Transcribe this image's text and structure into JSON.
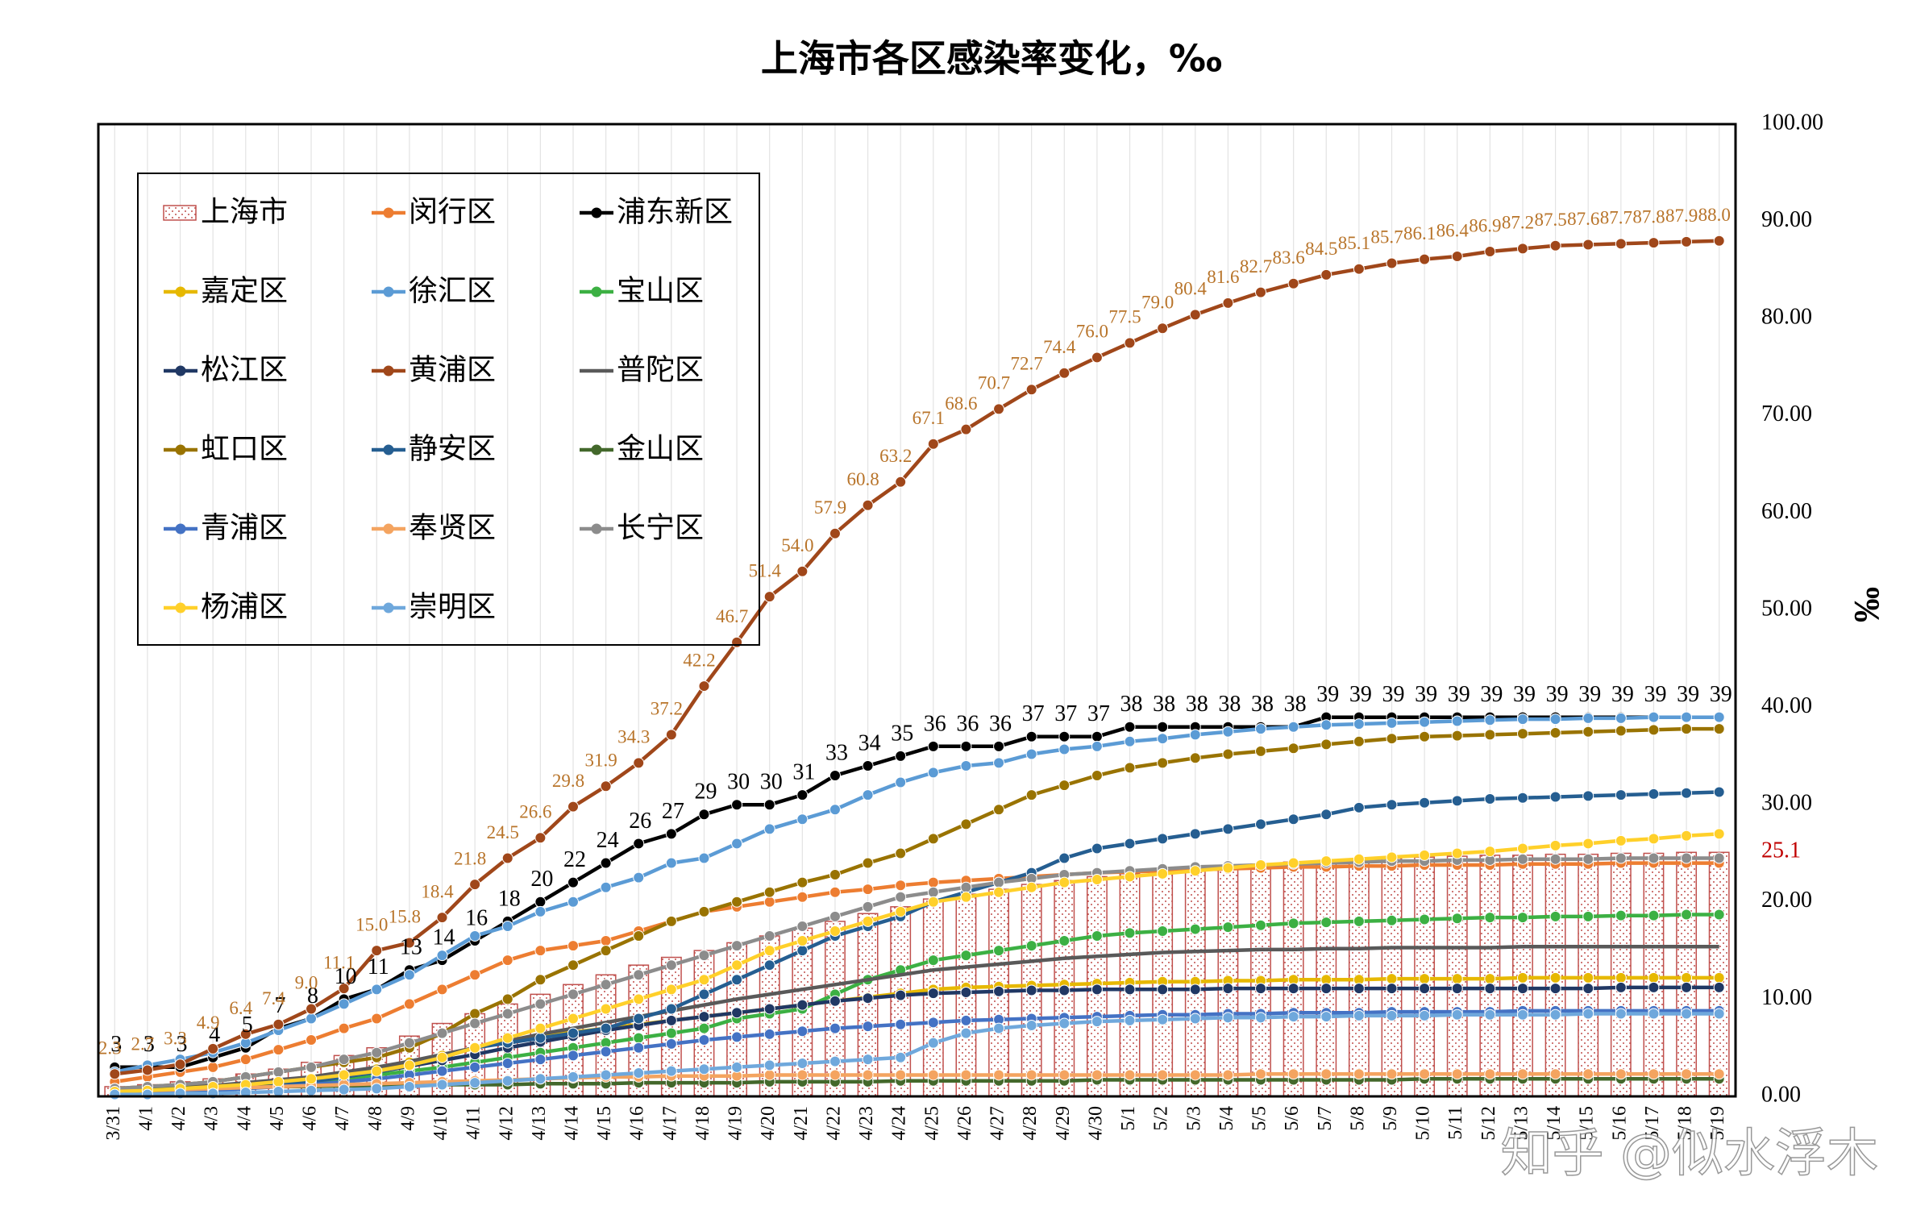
{
  "chart_data": {
    "type": "line",
    "title": "上海市各区感染率变化，‰",
    "y_axis_label": "‰",
    "watermark": "知乎 @似水浮木",
    "ylim": [
      0,
      100
    ],
    "yticks": [
      {
        "value": 0,
        "label": "0.00"
      },
      {
        "value": 10,
        "label": "10.00"
      },
      {
        "value": 20,
        "label": "20.00"
      },
      {
        "value": 30,
        "label": "30.00"
      },
      {
        "value": 40,
        "label": "40.00"
      },
      {
        "value": 50,
        "label": "50.00"
      },
      {
        "value": 60,
        "label": "60.00"
      },
      {
        "value": 70,
        "label": "70.00"
      },
      {
        "value": 80,
        "label": "80.00"
      },
      {
        "value": 90,
        "label": "90.00"
      },
      {
        "value": 100,
        "label": "100.00"
      }
    ],
    "grid": true,
    "legend": "top-left",
    "categories": [
      "3/31",
      "4/1",
      "4/2",
      "4/3",
      "4/4",
      "4/5",
      "4/6",
      "4/7",
      "4/8",
      "4/9",
      "4/10",
      "4/11",
      "4/12",
      "4/13",
      "4/14",
      "4/15",
      "4/16",
      "4/17",
      "4/18",
      "4/19",
      "4/20",
      "4/21",
      "4/22",
      "4/23",
      "4/24",
      "4/25",
      "4/26",
      "4/27",
      "4/28",
      "4/29",
      "4/30",
      "5/1",
      "5/2",
      "5/3",
      "5/4",
      "5/5",
      "5/6",
      "5/7",
      "5/8",
      "5/9",
      "5/10",
      "5/11",
      "5/12",
      "5/13",
      "5/14",
      "5/15",
      "5/16",
      "5/17",
      "5/18",
      "5/19"
    ],
    "series": [
      {
        "name": "上海市",
        "type": "bar",
        "color": "#c0504d",
        "label_last": true,
        "values": [
          1,
          1.2,
          1.5,
          1.8,
          2.3,
          2.8,
          3.5,
          4.2,
          5,
          6.2,
          7.5,
          8.5,
          9.5,
          10.5,
          11.5,
          12.5,
          13.5,
          14.3,
          15,
          15.8,
          16.5,
          17.3,
          18,
          18.8,
          19.5,
          20.3,
          20.8,
          21.3,
          21.8,
          22.2,
          22.6,
          22.9,
          23.2,
          23.5,
          23.7,
          23.9,
          24.1,
          24.2,
          24.4,
          24.5,
          24.6,
          24.7,
          24.8,
          24.8,
          24.9,
          24.9,
          25,
          25,
          25.1,
          25.1
        ]
      },
      {
        "name": "闵行区",
        "color": "#ed7d31",
        "marker": true,
        "values": [
          1.5,
          2,
          2.5,
          3,
          3.8,
          4.8,
          5.8,
          7,
          8,
          9.5,
          11,
          12.5,
          14,
          15,
          15.5,
          16,
          17,
          18,
          19,
          19.5,
          20,
          20.5,
          21,
          21.3,
          21.7,
          22,
          22.2,
          22.4,
          22.6,
          22.8,
          23,
          23.1,
          23.2,
          23.3,
          23.4,
          23.5,
          23.6,
          23.6,
          23.7,
          23.7,
          23.8,
          23.8,
          23.8,
          23.9,
          23.9,
          23.9,
          24,
          24,
          24,
          24
        ]
      },
      {
        "name": "浦东新区",
        "color": "#000000",
        "marker": true,
        "labels": true,
        "values": [
          3,
          3,
          3,
          4,
          5,
          7,
          8,
          10,
          11,
          13,
          14,
          16,
          18,
          20,
          22,
          24,
          26,
          27,
          29,
          30,
          30,
          31,
          33,
          34,
          35,
          36,
          36,
          36,
          37,
          37,
          37,
          38,
          38,
          38,
          38,
          38,
          38,
          39,
          39,
          39,
          39,
          39,
          39,
          39,
          39,
          39,
          39,
          39,
          39,
          39
        ]
      },
      {
        "name": "嘉定区",
        "color": "#e6b800",
        "marker": true,
        "values": [
          0.4,
          0.5,
          0.6,
          0.8,
          1,
          1.3,
          1.7,
          2.2,
          2.8,
          3.5,
          4.2,
          5,
          5.6,
          6.2,
          6.6,
          7,
          7.4,
          7.8,
          8.2,
          8.6,
          9,
          9.4,
          9.8,
          10.2,
          10.6,
          11,
          11.2,
          11.3,
          11.4,
          11.5,
          11.6,
          11.7,
          11.8,
          11.8,
          11.9,
          11.9,
          12,
          12,
          12,
          12.1,
          12.1,
          12.1,
          12.1,
          12.2,
          12.2,
          12.2,
          12.2,
          12.2,
          12.2,
          12.2
        ]
      },
      {
        "name": "徐汇区",
        "color": "#5b9bd5",
        "marker": true,
        "values": [
          2.5,
          3.2,
          3.8,
          4.5,
          5.5,
          6.8,
          8,
          9.5,
          11,
          12.5,
          14.5,
          16.5,
          17.5,
          19,
          20,
          21.5,
          22.5,
          24,
          24.5,
          26,
          27.5,
          28.5,
          29.5,
          31,
          32.3,
          33.3,
          34,
          34.3,
          35.2,
          35.7,
          36,
          36.5,
          36.8,
          37.2,
          37.5,
          37.8,
          38,
          38.2,
          38.3,
          38.4,
          38.5,
          38.6,
          38.7,
          38.8,
          38.8,
          38.9,
          38.9,
          39,
          39,
          39
        ]
      },
      {
        "name": "宝山区",
        "color": "#3cb043",
        "marker": true,
        "values": [
          0.5,
          0.6,
          0.7,
          0.8,
          1,
          1.2,
          1.5,
          1.8,
          2.2,
          2.6,
          3,
          3.5,
          4,
          4.5,
          5,
          5.5,
          6,
          6.5,
          7,
          8,
          8.5,
          9,
          10.5,
          12,
          13,
          14,
          14.5,
          15,
          15.5,
          16,
          16.5,
          16.8,
          17,
          17.2,
          17.4,
          17.6,
          17.8,
          17.9,
          18,
          18.1,
          18.2,
          18.3,
          18.4,
          18.4,
          18.5,
          18.5,
          18.6,
          18.6,
          18.7,
          18.7
        ]
      },
      {
        "name": "松江区",
        "color": "#203864",
        "marker": true,
        "values": [
          0.4,
          0.5,
          0.6,
          0.8,
          1,
          1.3,
          1.6,
          2,
          2.5,
          3.1,
          3.7,
          4.3,
          5,
          5.6,
          6.2,
          6.8,
          7.3,
          7.8,
          8.2,
          8.6,
          9,
          9.4,
          9.8,
          10.1,
          10.4,
          10.6,
          10.7,
          10.8,
          10.9,
          10.9,
          11,
          11,
          11,
          11,
          11.1,
          11.1,
          11.1,
          11.1,
          11.1,
          11.1,
          11.1,
          11.1,
          11.1,
          11.1,
          11.1,
          11.1,
          11.2,
          11.2,
          11.2,
          11.2
        ]
      },
      {
        "name": "黄浦区",
        "color": "#a0471a",
        "marker": true,
        "label_color": "#b8742a",
        "values": [
          2.3,
          2.7,
          3.3,
          4.9,
          6.4,
          7.4,
          9,
          11.1,
          15,
          15.8,
          18.4,
          21.8,
          24.5,
          26.6,
          29.8,
          31.9,
          34.3,
          37.2,
          42.2,
          46.7,
          51.4,
          54,
          57.9,
          60.8,
          63.2,
          67.1,
          68.6,
          70.7,
          72.7,
          74.4,
          76,
          77.5,
          79,
          80.4,
          81.6,
          82.7,
          83.6,
          84.5,
          85.1,
          85.7,
          86.1,
          86.4,
          86.9,
          87.2,
          87.5,
          87.6,
          87.7,
          87.8,
          87.9,
          88
        ],
        "value_labels": [
          "2.3",
          "2.7",
          "3.3",
          "4.9",
          "6.4",
          "7.4",
          "9.0",
          "11.1",
          "15.0",
          "15.8",
          "18.4",
          "21.8",
          "24.5",
          "26.6",
          "29.8",
          "31.9",
          "34.3",
          "37.2",
          "42.2",
          "46.7",
          "51.4",
          "54.0",
          "57.9",
          "60.8",
          "63.2",
          "67.1",
          "68.6",
          "70.7",
          "72.7",
          "74.4",
          "76.0",
          "77.5",
          "79.0",
          "80.4",
          "81.6",
          "82.7",
          "83.6",
          "84.5",
          "85.1",
          "85.7",
          "86.1",
          "86.4",
          "86.9",
          "87.2",
          "87.5",
          "87.6",
          "87.7",
          "87.8",
          "87.9",
          "88.0"
        ]
      },
      {
        "name": "普陀区",
        "color": "#595959",
        "marker": false,
        "values": [
          0.5,
          0.7,
          0.9,
          1.1,
          1.4,
          1.7,
          2,
          2.5,
          3,
          3.6,
          4.3,
          5,
          5.7,
          6.4,
          7,
          7.6,
          8.2,
          8.8,
          9.4,
          10,
          10.5,
          11,
          11.5,
          12,
          12.5,
          13,
          13.3,
          13.6,
          13.9,
          14.2,
          14.4,
          14.6,
          14.8,
          14.9,
          15,
          15.1,
          15.1,
          15.2,
          15.2,
          15.3,
          15.3,
          15.3,
          15.3,
          15.4,
          15.4,
          15.4,
          15.4,
          15.4,
          15.4,
          15.4
        ]
      },
      {
        "name": "虹口区",
        "color": "#997300",
        "marker": true,
        "values": [
          0.8,
          1,
          1.2,
          1.5,
          2,
          2.5,
          3,
          3.5,
          4,
          5,
          6.5,
          8.5,
          10,
          12,
          13.5,
          15,
          16.5,
          18,
          19,
          20,
          21,
          22,
          22.8,
          24,
          25,
          26.5,
          28,
          29.5,
          31,
          32,
          33,
          33.8,
          34.3,
          34.8,
          35.2,
          35.5,
          35.8,
          36.2,
          36.5,
          36.8,
          37,
          37.1,
          37.2,
          37.3,
          37.4,
          37.5,
          37.6,
          37.7,
          37.8,
          37.8
        ]
      },
      {
        "name": "静安区",
        "color": "#255e91",
        "marker": true,
        "values": [
          0.5,
          0.6,
          0.7,
          0.8,
          1,
          1.2,
          1.5,
          2,
          2.5,
          3.2,
          4,
          5,
          5.5,
          6,
          6.5,
          7,
          8,
          9,
          10.5,
          12,
          13.5,
          15,
          16.5,
          17.5,
          18.5,
          20,
          21,
          22,
          23,
          24.5,
          25.5,
          26,
          26.5,
          27,
          27.5,
          28,
          28.5,
          29,
          29.7,
          30,
          30.2,
          30.4,
          30.6,
          30.7,
          30.8,
          30.9,
          31,
          31.1,
          31.2,
          31.3
        ]
      },
      {
        "name": "金山区",
        "color": "#43682b",
        "marker": true,
        "values": [
          0.8,
          0.8,
          0.9,
          0.9,
          1,
          1,
          1,
          1.1,
          1.1,
          1.1,
          1.2,
          1.2,
          1.2,
          1.3,
          1.3,
          1.3,
          1.4,
          1.4,
          1.4,
          1.4,
          1.5,
          1.5,
          1.5,
          1.5,
          1.6,
          1.6,
          1.6,
          1.6,
          1.6,
          1.6,
          1.7,
          1.7,
          1.7,
          1.7,
          1.7,
          1.7,
          1.7,
          1.7,
          1.7,
          1.7,
          1.8,
          1.8,
          1.8,
          1.8,
          1.8,
          1.8,
          1.8,
          1.8,
          1.8,
          1.8
        ]
      },
      {
        "name": "青浦区",
        "color": "#4472c4",
        "marker": true,
        "values": [
          0.3,
          0.4,
          0.5,
          0.6,
          0.8,
          1,
          1.2,
          1.5,
          1.8,
          2.2,
          2.6,
          3,
          3.4,
          3.8,
          4.2,
          4.6,
          5,
          5.4,
          5.8,
          6.1,
          6.4,
          6.7,
          7,
          7.2,
          7.4,
          7.6,
          7.8,
          7.9,
          8,
          8.1,
          8.2,
          8.3,
          8.4,
          8.4,
          8.5,
          8.5,
          8.6,
          8.6,
          8.6,
          8.7,
          8.7,
          8.7,
          8.7,
          8.8,
          8.8,
          8.8,
          8.8,
          8.8,
          8.8,
          8.8
        ]
      },
      {
        "name": "奉贤区",
        "color": "#f4a460",
        "marker": true,
        "values": [
          0.5,
          0.6,
          0.7,
          0.8,
          0.9,
          1,
          1.1,
          1.2,
          1.3,
          1.4,
          1.5,
          1.6,
          1.7,
          1.8,
          1.9,
          2,
          2,
          2.1,
          2.1,
          2.1,
          2.2,
          2.2,
          2.2,
          2.2,
          2.2,
          2.2,
          2.2,
          2.2,
          2.2,
          2.2,
          2.2,
          2.2,
          2.2,
          2.2,
          2.2,
          2.3,
          2.3,
          2.3,
          2.3,
          2.3,
          2.3,
          2.3,
          2.3,
          2.3,
          2.3,
          2.3,
          2.3,
          2.3,
          2.3,
          2.3
        ]
      },
      {
        "name": "长宁区",
        "color": "#8c8c8c",
        "marker": true,
        "values": [
          0.8,
          1,
          1.2,
          1.5,
          2,
          2.5,
          3,
          3.8,
          4.5,
          5.5,
          6.5,
          7.5,
          8.5,
          9.5,
          10.5,
          11.5,
          12.5,
          13.5,
          14.5,
          15.5,
          16.5,
          17.5,
          18.5,
          19.5,
          20.5,
          21,
          21.5,
          22,
          22.4,
          22.8,
          23,
          23.2,
          23.4,
          23.6,
          23.7,
          23.8,
          23.9,
          24,
          24.1,
          24.2,
          24.2,
          24.3,
          24.3,
          24.4,
          24.4,
          24.4,
          24.5,
          24.5,
          24.5,
          24.5
        ]
      },
      {
        "name": "杨浦区",
        "color": "#ffd02a",
        "marker": true,
        "values": [
          0.5,
          0.6,
          0.8,
          1,
          1.2,
          1.5,
          1.8,
          2.2,
          2.6,
          3.2,
          4,
          5,
          6,
          7,
          8,
          9,
          10,
          11,
          12,
          13.5,
          15,
          16,
          17,
          18,
          19,
          20,
          20.5,
          21,
          21.5,
          22,
          22.3,
          22.6,
          22.9,
          23.2,
          23.5,
          23.8,
          24,
          24.2,
          24.4,
          24.6,
          24.8,
          25,
          25.2,
          25.5,
          25.8,
          26,
          26.3,
          26.5,
          26.8,
          27
        ]
      },
      {
        "name": "崇明区",
        "color": "#6fa8dc",
        "marker": true,
        "values": [
          0.2,
          0.2,
          0.3,
          0.3,
          0.4,
          0.5,
          0.6,
          0.7,
          0.8,
          1,
          1.2,
          1.4,
          1.6,
          1.8,
          2,
          2.2,
          2.4,
          2.6,
          2.8,
          3,
          3.2,
          3.4,
          3.6,
          3.8,
          4,
          5.5,
          6.5,
          7,
          7.3,
          7.5,
          7.7,
          7.8,
          7.9,
          8,
          8.1,
          8.1,
          8.2,
          8.2,
          8.3,
          8.3,
          8.3,
          8.4,
          8.4,
          8.4,
          8.4,
          8.5,
          8.5,
          8.5,
          8.5,
          8.5
        ]
      }
    ]
  }
}
